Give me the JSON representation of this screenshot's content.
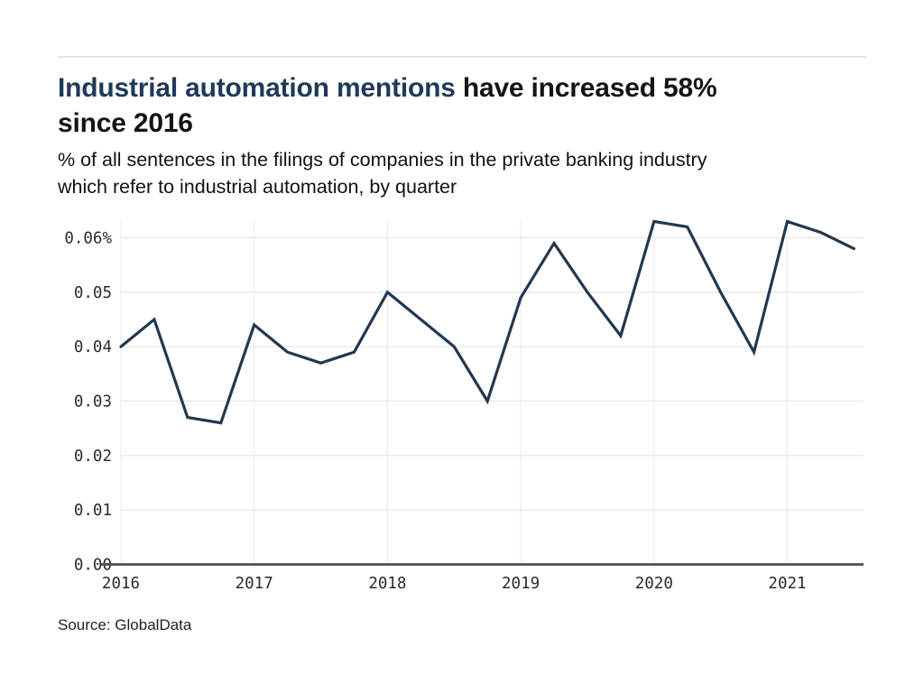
{
  "page": {
    "background_color": "#ffffff",
    "top_rule_color": "#e3e3e3"
  },
  "header": {
    "title_highlight": "Industrial automation mentions",
    "title_rest": " have increased 58%",
    "title_line2": "since 2016",
    "title_highlight_color": "#1f395a",
    "subtitle_line1": "% of all sentences in the filings of companies in the private banking industry",
    "subtitle_line2": "which refer to industrial automation, by quarter"
  },
  "footer": {
    "source": "Source: GlobalData"
  },
  "chart_data": {
    "type": "line",
    "title": "Industrial automation mentions have increased 58% since 2016",
    "subtitle": "% of all sentences in the filings of companies in the private banking industry which refer to industrial automation, by quarter",
    "unit": "%",
    "x": [
      "2016 Q1",
      "2016 Q2",
      "2016 Q3",
      "2016 Q4",
      "2017 Q1",
      "2017 Q2",
      "2017 Q3",
      "2017 Q4",
      "2018 Q1",
      "2018 Q2",
      "2018 Q3",
      "2018 Q4",
      "2019 Q1",
      "2019 Q2",
      "2019 Q3",
      "2019 Q4",
      "2020 Q1",
      "2020 Q2",
      "2020 Q3",
      "2020 Q4",
      "2021 Q1",
      "2021 Q2",
      "2021 Q3"
    ],
    "values": [
      0.04,
      0.045,
      0.027,
      0.026,
      0.044,
      0.039,
      0.037,
      0.039,
      0.05,
      0.045,
      0.04,
      0.03,
      0.049,
      0.059,
      0.05,
      0.042,
      0.063,
      0.062,
      0.05,
      0.039,
      0.063,
      0.061,
      0.058
    ],
    "x_tick_labels": [
      "2016",
      "2017",
      "2018",
      "2019",
      "2020",
      "2021"
    ],
    "y_ticks": [
      0,
      0.01,
      0.02,
      0.03,
      0.04,
      0.05,
      0.06
    ],
    "y_tick_labels": [
      "0.00",
      "0.01",
      "0.02",
      "0.03",
      "0.04",
      "0.05",
      "0.06%"
    ],
    "ylim": [
      0,
      0.0665
    ],
    "grid": true,
    "legend": "none",
    "line_color": "#213850",
    "axis_color": "#4f4f4f",
    "h_grid_color": "#e6e6e6",
    "v_grid_color": "#ececec",
    "tick_label_color": "#2b2b2b"
  }
}
